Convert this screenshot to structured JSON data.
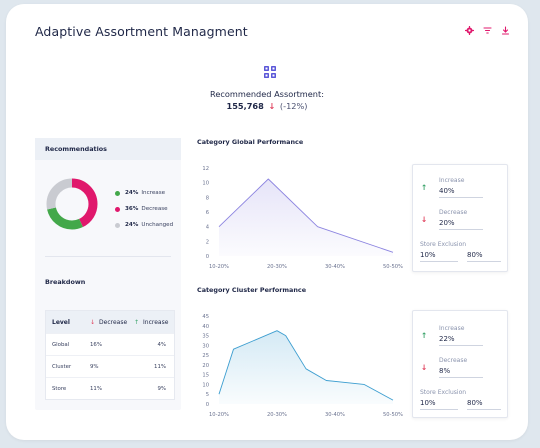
{
  "header": {
    "title": "Adaptive Assortment Managment",
    "icons": [
      "settings-icon",
      "filter-icon",
      "download-icon"
    ],
    "accent_color": "#e0186c"
  },
  "recommended": {
    "label": "Recommended Assortment:",
    "value": "155,768",
    "change": "(-12%)",
    "icon": "grid-icon",
    "icon_color": "#5b57d8"
  },
  "recommendations": {
    "title": "Recommendatios",
    "items": [
      {
        "pct": "24%",
        "label": "Increase",
        "color": "#43a84a"
      },
      {
        "pct": "36%",
        "label": "Decrease",
        "color": "#e0186c"
      },
      {
        "pct": "24%",
        "label": "Unchanged",
        "color": "#c9cbd1"
      }
    ]
  },
  "breakdown": {
    "title": "Breakdown",
    "headers": {
      "level": "Level",
      "decrease": "Decrease",
      "increase": "Increase"
    },
    "rows": [
      {
        "level": "Global",
        "decrease": "16%",
        "increase": "4%"
      },
      {
        "level": "Cluster",
        "decrease": "9%",
        "increase": "11%"
      },
      {
        "level": "Store",
        "decrease": "11%",
        "increase": "9%"
      }
    ]
  },
  "chart_data": [
    {
      "type": "area",
      "title": "Category Global Performance",
      "x": [
        "10-20%",
        "20-30%",
        "30-40%",
        "50-50%"
      ],
      "ylim": [
        0,
        12
      ],
      "yticks": [
        0,
        2,
        4,
        6,
        8,
        10,
        12
      ],
      "xlabel": "",
      "ylabel": "",
      "points": [
        [
          0,
          4
        ],
        [
          0.85,
          10.5
        ],
        [
          1.7,
          4
        ],
        [
          3,
          0.5
        ]
      ],
      "color": "#8c84e0"
    },
    {
      "type": "area",
      "title": "Category Cluster Performance",
      "x": [
        "10-20%",
        "20-30%",
        "30-40%",
        "50-50%"
      ],
      "ylim": [
        0,
        45
      ],
      "yticks": [
        0,
        5,
        10,
        15,
        20,
        25,
        30,
        35,
        40,
        45
      ],
      "xlabel": "",
      "ylabel": "",
      "points": [
        [
          0,
          5
        ],
        [
          0.25,
          28
        ],
        [
          1.0,
          37.5
        ],
        [
          1.15,
          35
        ],
        [
          1.5,
          18
        ],
        [
          1.85,
          12
        ],
        [
          2.5,
          10
        ],
        [
          3,
          2
        ]
      ],
      "color": "#3d9ed0"
    }
  ],
  "panels": [
    {
      "increase_label": "Increase",
      "increase_value": "40%",
      "decrease_label": "Decrease",
      "decrease_value": "20%",
      "exclusion_label": "Store Exclusion",
      "min_value": "10%",
      "max_value": "80%"
    },
    {
      "increase_label": "Increase",
      "increase_value": "22%",
      "decrease_label": "Decrease",
      "decrease_value": "8%",
      "exclusion_label": "Store Exclusion",
      "min_value": "10%",
      "max_value": "80%"
    }
  ]
}
